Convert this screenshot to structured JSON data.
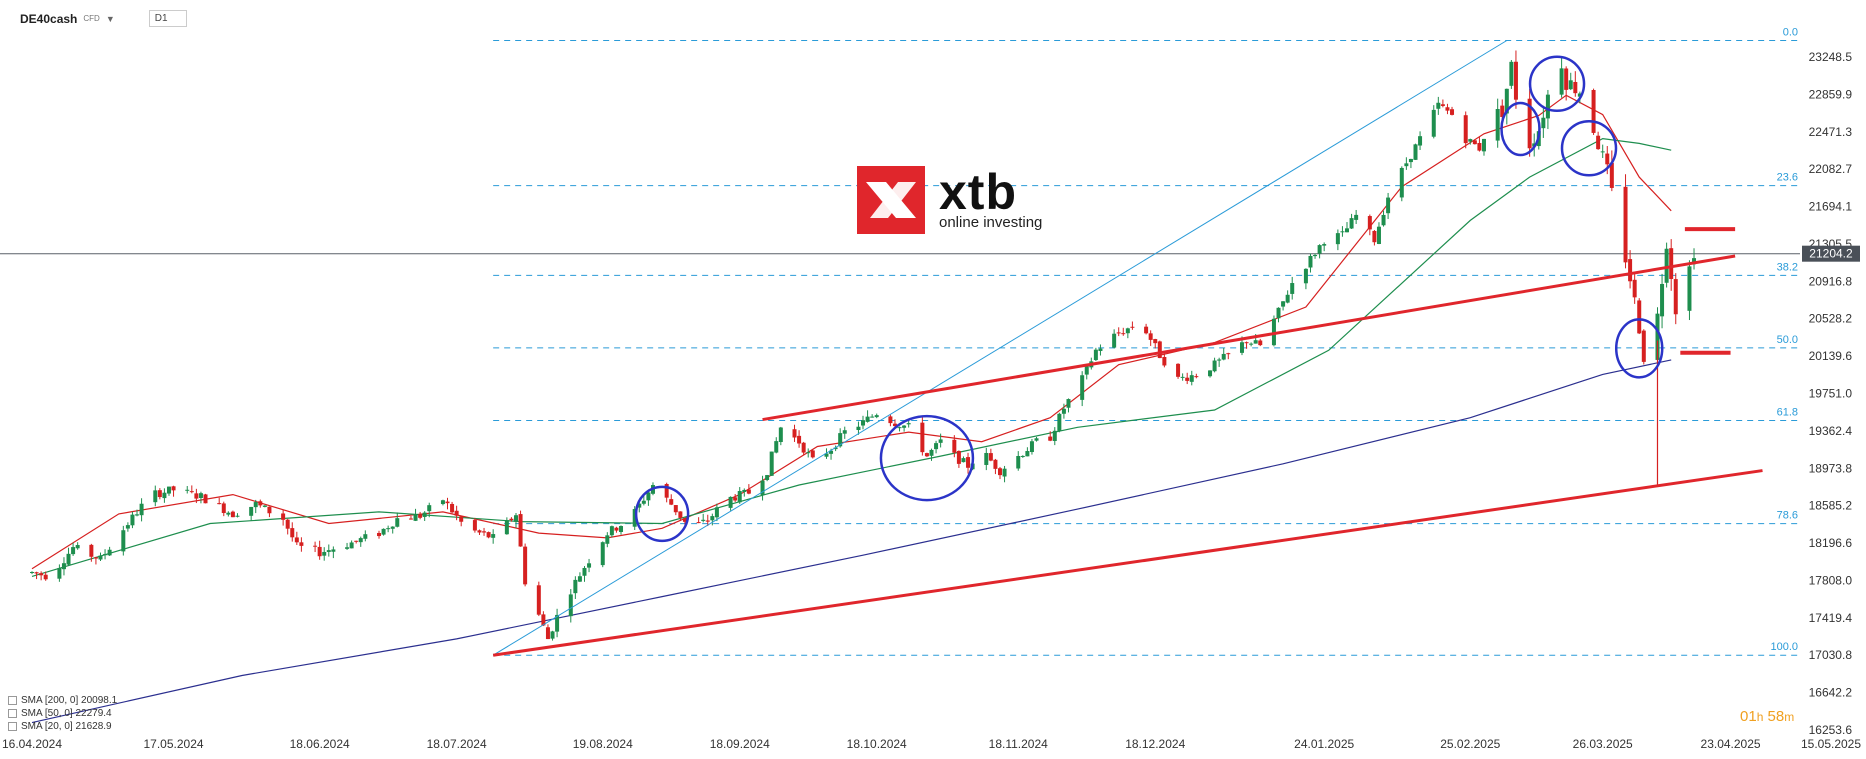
{
  "header": {
    "symbol": "DE40cash",
    "instrument_type": "CFD",
    "timeframe": "D1"
  },
  "branding": {
    "name": "xtb",
    "tagline": "online investing"
  },
  "legend": [
    {
      "label": "SMA [200, 0] 20098.1",
      "color": "#2b2f8f"
    },
    {
      "label": "SMA [50, 0] 22279.4",
      "color": "#1e8e4e"
    },
    {
      "label": "SMA [20, 0] 21628.9",
      "color": "#d62020"
    }
  ],
  "timer": {
    "hours": "01",
    "h_unit": "h",
    "minutes": "58",
    "m_unit": "m"
  },
  "chart_data": {
    "type": "candlestick",
    "title": "",
    "price_ticks": [
      "23248.5",
      "22859.9",
      "22471.3",
      "22082.7",
      "21694.1",
      "21305.5",
      "20916.8",
      "20528.2",
      "20139.6",
      "19751.0",
      "19362.4",
      "18973.8",
      "18585.2",
      "18196.6",
      "17808.0",
      "17419.4",
      "17030.8",
      "16642.2",
      "16253.6"
    ],
    "date_ticks": [
      "16.04.2024",
      "17.05.2024",
      "18.06.2024",
      "18.07.2024",
      "19.08.2024",
      "18.09.2024",
      "18.10.2024",
      "18.11.2024",
      "18.12.2024",
      "24.01.2025",
      "25.02.2025",
      "26.03.2025",
      "23.04.2025",
      "15.05.2025"
    ],
    "current_price": "21204.2",
    "ylim": [
      16253.6,
      23248.5
    ],
    "fibonacci": {
      "high": 23420,
      "low": 17030.8,
      "levels": [
        {
          "label": "0.0",
          "price": 23420
        },
        {
          "label": "23.6",
          "price": 21912
        },
        {
          "label": "38.2",
          "price": 20979
        },
        {
          "label": "50.0",
          "price": 20225
        },
        {
          "label": "61.8",
          "price": 19471
        },
        {
          "label": "78.6",
          "price": 18398
        },
        {
          "label": "100.0",
          "price": 17030.8
        }
      ]
    },
    "colors": {
      "up": "#1e8e4e",
      "down": "#d62020",
      "fib": "#2a9bd8",
      "price_line": "#5a6068",
      "label_bg": "#4a5058",
      "trend": "#e0262c",
      "circle": "#2b34c8",
      "diag": "#2a9bd8"
    },
    "sma": [
      {
        "name": "SMA [20, 0] 21628.9",
        "color": "#d62020",
        "points": [
          [
            "2024-04-16",
            17930
          ],
          [
            "2024-05-05",
            18500
          ],
          [
            "2024-05-30",
            18700
          ],
          [
            "2024-06-20",
            18400
          ],
          [
            "2024-07-15",
            18520
          ],
          [
            "2024-08-05",
            18300
          ],
          [
            "2024-08-20",
            18250
          ],
          [
            "2024-09-01",
            18350
          ],
          [
            "2024-09-18",
            18700
          ],
          [
            "2024-10-05",
            19200
          ],
          [
            "2024-10-25",
            19350
          ],
          [
            "2024-11-10",
            19250
          ],
          [
            "2024-11-25",
            19500
          ],
          [
            "2024-12-10",
            20050
          ],
          [
            "2024-12-31",
            20280
          ],
          [
            "2025-01-20",
            20650
          ],
          [
            "2025-02-10",
            21900
          ],
          [
            "2025-02-28",
            22450
          ],
          [
            "2025-03-12",
            22640
          ],
          [
            "2025-03-18",
            22850
          ],
          [
            "2025-03-26",
            22650
          ],
          [
            "2025-04-03",
            22000
          ],
          [
            "2025-04-10",
            21650
          ]
        ]
      },
      {
        "name": "SMA [50, 0] 22279.4",
        "color": "#1e8e4e",
        "points": [
          [
            "2024-04-16",
            17850
          ],
          [
            "2024-05-25",
            18400
          ],
          [
            "2024-07-01",
            18520
          ],
          [
            "2024-08-01",
            18420
          ],
          [
            "2024-09-01",
            18400
          ],
          [
            "2024-10-01",
            18800
          ],
          [
            "2024-11-01",
            19100
          ],
          [
            "2024-12-01",
            19400
          ],
          [
            "2024-12-31",
            19580
          ],
          [
            "2025-01-25",
            20200
          ],
          [
            "2025-02-25",
            21550
          ],
          [
            "2025-03-10",
            22000
          ],
          [
            "2025-03-26",
            22400
          ],
          [
            "2025-04-03",
            22350
          ],
          [
            "2025-04-10",
            22280
          ]
        ]
      },
      {
        "name": "SMA [200, 0] 20098.1",
        "color": "#2b2f8f",
        "points": [
          [
            "2024-04-16",
            16330
          ],
          [
            "2024-06-01",
            16820
          ],
          [
            "2024-07-18",
            17200
          ],
          [
            "2024-09-01",
            17640
          ],
          [
            "2024-10-15",
            18070
          ],
          [
            "2024-12-01",
            18550
          ],
          [
            "2025-01-15",
            19020
          ],
          [
            "2025-02-25",
            19500
          ],
          [
            "2025-03-26",
            19950
          ],
          [
            "2025-04-10",
            20100
          ]
        ]
      }
    ],
    "trendlines": [
      {
        "from": [
          "2024-07-26",
          17030.8
        ],
        "to": [
          "2025-04-30",
          18950
        ]
      },
      {
        "from": [
          "2024-09-23",
          19480
        ],
        "to": [
          "2025-04-24",
          21180
        ]
      }
    ],
    "diagonal": {
      "from": [
        "2024-07-26",
        17030.8
      ],
      "to": [
        "2025-03-05",
        23420
      ]
    },
    "horizontal_marks": [
      {
        "from": "2025-04-13",
        "to": "2025-04-24",
        "price": 21460
      },
      {
        "from": "2025-04-12",
        "to": "2025-04-23",
        "price": 20175
      }
    ],
    "circles": [
      {
        "date": "2024-09-01",
        "price": 18500,
        "rx": 26,
        "ry": 27
      },
      {
        "date": "2024-10-29",
        "price": 19080,
        "rx": 46,
        "ry": 42
      },
      {
        "date": "2025-03-08",
        "price": 22500,
        "rx": 19,
        "ry": 26
      },
      {
        "date": "2025-03-16",
        "price": 22970,
        "rx": 27,
        "ry": 27
      },
      {
        "date": "2025-03-23",
        "price": 22300,
        "rx": 27,
        "ry": 27
      },
      {
        "date": "2025-04-03",
        "price": 20220,
        "rx": 23,
        "ry": 29
      }
    ],
    "price_path": [
      [
        "2024-04-16",
        17890
      ],
      [
        "2024-04-20",
        17850
      ],
      [
        "2024-04-25",
        18150
      ],
      [
        "2024-05-01",
        18030
      ],
      [
        "2024-05-07",
        18400
      ],
      [
        "2024-05-12",
        18700
      ],
      [
        "2024-05-17",
        18750
      ],
      [
        "2024-05-23",
        18680
      ],
      [
        "2024-05-30",
        18500
      ],
      [
        "2024-06-04",
        18600
      ],
      [
        "2024-06-10",
        18450
      ],
      [
        "2024-06-13",
        18160
      ],
      [
        "2024-06-18",
        18100
      ],
      [
        "2024-06-25",
        18200
      ],
      [
        "2024-07-01",
        18300
      ],
      [
        "2024-07-05",
        18450
      ],
      [
        "2024-07-10",
        18480
      ],
      [
        "2024-07-15",
        18650
      ],
      [
        "2024-07-20",
        18350
      ],
      [
        "2024-07-26",
        18250
      ],
      [
        "2024-07-31",
        18500
      ],
      [
        "2024-08-02",
        17800
      ],
      [
        "2024-08-05",
        17450
      ],
      [
        "2024-08-07",
        17200
      ],
      [
        "2024-08-10",
        17550
      ],
      [
        "2024-08-15",
        17950
      ],
      [
        "2024-08-20",
        18300
      ],
      [
        "2024-08-25",
        18450
      ],
      [
        "2024-08-30",
        18800
      ],
      [
        "2024-09-03",
        18600
      ],
      [
        "2024-09-07",
        18350
      ],
      [
        "2024-09-11",
        18430
      ],
      [
        "2024-09-15",
        18650
      ],
      [
        "2024-09-20",
        18720
      ],
      [
        "2024-09-24",
        18950
      ],
      [
        "2024-09-27",
        19400
      ],
      [
        "2024-10-01",
        19250
      ],
      [
        "2024-10-04",
        19050
      ],
      [
        "2024-10-08",
        19180
      ],
      [
        "2024-10-11",
        19350
      ],
      [
        "2024-10-15",
        19450
      ],
      [
        "2024-10-18",
        19550
      ],
      [
        "2024-10-22",
        19450
      ],
      [
        "2024-10-25",
        19400
      ],
      [
        "2024-10-29",
        19100
      ],
      [
        "2024-11-01",
        19250
      ],
      [
        "2024-11-04",
        19100
      ],
      [
        "2024-11-07",
        19000
      ],
      [
        "2024-11-10",
        19150
      ],
      [
        "2024-11-14",
        18950
      ],
      [
        "2024-11-18",
        19100
      ],
      [
        "2024-11-22",
        19250
      ],
      [
        "2024-11-25",
        19300
      ],
      [
        "2024-11-28",
        19600
      ],
      [
        "2024-12-02",
        19900
      ],
      [
        "2024-12-05",
        20200
      ],
      [
        "2024-12-09",
        20350
      ],
      [
        "2024-12-13",
        20450
      ],
      [
        "2024-12-16",
        20400
      ],
      [
        "2024-12-19",
        20150
      ],
      [
        "2024-12-23",
        19900
      ],
      [
        "2024-12-27",
        19950
      ],
      [
        "2024-12-31",
        20050
      ],
      [
        "2025-01-03",
        20150
      ],
      [
        "2025-01-07",
        20300
      ],
      [
        "2025-01-10",
        20250
      ],
      [
        "2025-01-14",
        20600
      ],
      [
        "2025-01-17",
        20900
      ],
      [
        "2025-01-21",
        21150
      ],
      [
        "2025-01-24",
        21350
      ],
      [
        "2025-01-28",
        21400
      ],
      [
        "2025-01-31",
        21600
      ],
      [
        "2025-02-04",
        21350
      ],
      [
        "2025-02-07",
        21800
      ],
      [
        "2025-02-11",
        22150
      ],
      [
        "2025-02-14",
        22400
      ],
      [
        "2025-02-18",
        22750
      ],
      [
        "2025-02-21",
        22650
      ],
      [
        "2025-02-24",
        22400
      ],
      [
        "2025-02-27",
        22300
      ],
      [
        "2025-03-01",
        22550
      ],
      [
        "2025-03-04",
        22700
      ],
      [
        "2025-03-06",
        23150
      ],
      [
        "2025-03-08",
        22550
      ],
      [
        "2025-03-10",
        22350
      ],
      [
        "2025-03-12",
        22500
      ],
      [
        "2025-03-14",
        22850
      ],
      [
        "2025-03-16",
        23400
      ],
      [
        "2025-03-18",
        23000
      ],
      [
        "2025-03-21",
        22900
      ],
      [
        "2025-03-23",
        22650
      ],
      [
        "2025-03-25",
        22350
      ],
      [
        "2025-03-27",
        22050
      ],
      [
        "2025-03-29",
        21600
      ],
      [
        "2025-04-01",
        20950
      ],
      [
        "2025-04-03",
        20450
      ],
      [
        "2025-04-05",
        19850
      ],
      [
        "2025-04-07",
        20550
      ],
      [
        "2025-04-09",
        21350
      ],
      [
        "2025-04-11",
        20650
      ],
      [
        "2025-04-13",
        20850
      ],
      [
        "2025-04-14",
        21050
      ],
      [
        "2025-04-15",
        21250
      ]
    ]
  }
}
